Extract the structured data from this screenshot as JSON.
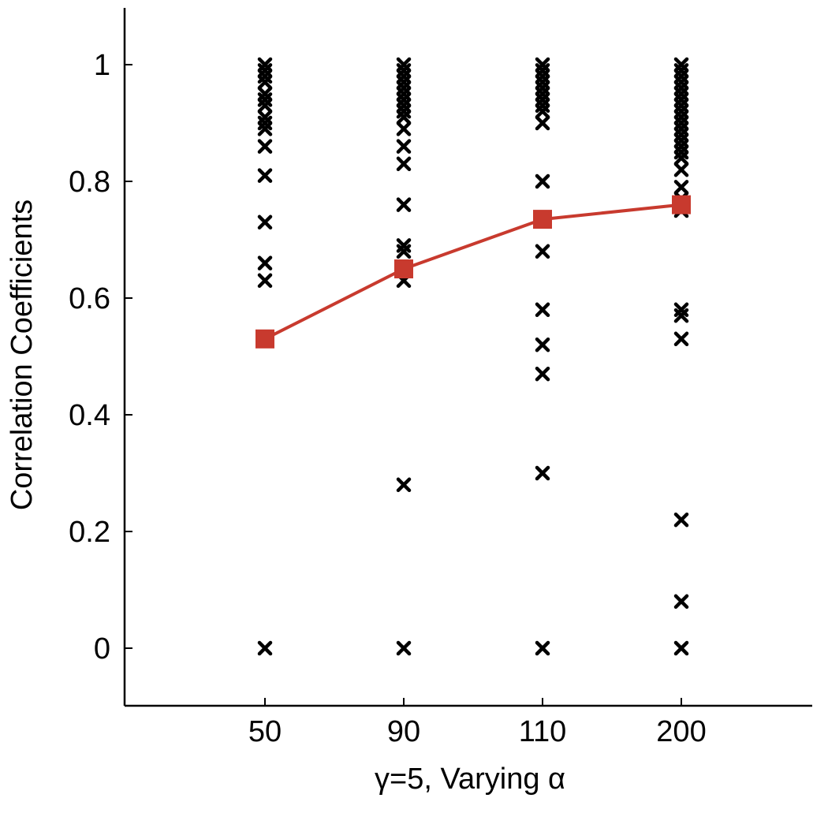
{
  "chart_data": {
    "type": "scatter",
    "title": "",
    "xlabel": "γ=5, Varying α",
    "ylabel": "Correlation Coefficients",
    "categories": [
      "50",
      "90",
      "110",
      "200"
    ],
    "yticks": [
      "0",
      "0.2",
      "0.4",
      "0.6",
      "0.8",
      "1"
    ],
    "ylim": [
      -0.1,
      1.1
    ],
    "grid": false,
    "legend": "none",
    "colors": {
      "scatter": "#000000",
      "mean_line": "#c83a2e"
    },
    "series": [
      {
        "type": "scatter",
        "marker": "x",
        "points": {
          "50": [
            1.0,
            0.99,
            0.98,
            0.97,
            0.95,
            0.94,
            0.93,
            0.91,
            0.9,
            0.89,
            0.86,
            0.81,
            0.73,
            0.66,
            0.63,
            0.0
          ],
          "90": [
            1.0,
            0.99,
            0.98,
            0.97,
            0.96,
            0.95,
            0.94,
            0.93,
            0.92,
            0.91,
            0.89,
            0.86,
            0.83,
            0.76,
            0.69,
            0.68,
            0.63,
            0.28,
            0.0
          ],
          "110": [
            1.0,
            0.99,
            0.98,
            0.97,
            0.96,
            0.95,
            0.94,
            0.93,
            0.92,
            0.9,
            0.8,
            0.68,
            0.58,
            0.52,
            0.47,
            0.3,
            0.0
          ],
          "200": [
            1.0,
            0.99,
            0.98,
            0.97,
            0.96,
            0.95,
            0.94,
            0.93,
            0.92,
            0.91,
            0.9,
            0.89,
            0.88,
            0.87,
            0.86,
            0.85,
            0.84,
            0.82,
            0.79,
            0.77,
            0.75,
            0.58,
            0.57,
            0.53,
            0.22,
            0.08,
            0.0
          ]
        }
      },
      {
        "type": "line",
        "marker": "square",
        "values": [
          0.53,
          0.65,
          0.735,
          0.76
        ]
      }
    ]
  }
}
